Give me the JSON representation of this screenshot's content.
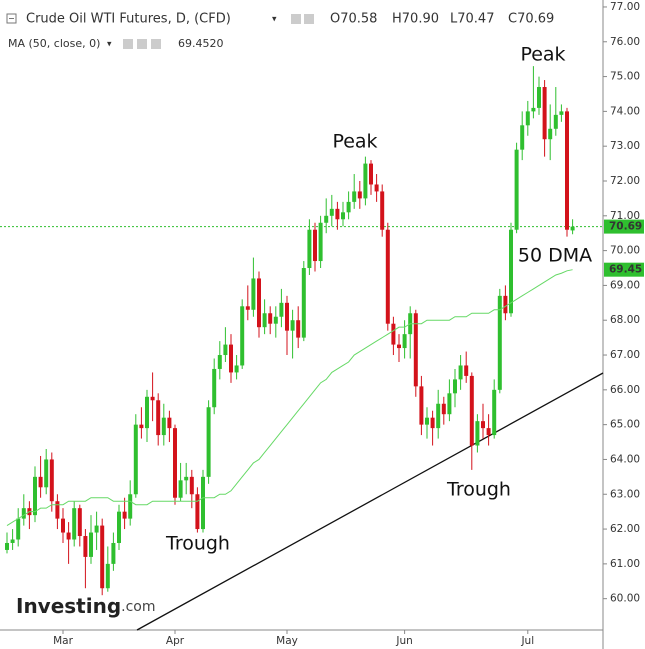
{
  "chart_data": {
    "type": "candlestick",
    "title": "Crude Oil WTI Futures, D, (CFD)",
    "ohlc_labels": [
      "O70.58",
      "H70.90",
      "L70.47",
      "C70.69"
    ],
    "ma": {
      "name": "MA (50, close, 0)",
      "legend_value": "69.4520",
      "price_label": "69.45",
      "color": "#66d966",
      "values": [
        62.1,
        62.2,
        62.3,
        62.4,
        62.5,
        62.5,
        62.6,
        62.6,
        62.7,
        62.7,
        62.7,
        62.8,
        62.8,
        62.8,
        62.8,
        62.9,
        62.9,
        62.9,
        62.9,
        62.8,
        62.8,
        62.8,
        62.8,
        62.7,
        62.7,
        62.7,
        62.8,
        62.8,
        62.8,
        62.8,
        62.8,
        62.8,
        62.8,
        62.8,
        62.8,
        62.9,
        62.9,
        62.9,
        63.0,
        63.0,
        63.1,
        63.3,
        63.5,
        63.7,
        63.9,
        64.0,
        64.2,
        64.4,
        64.6,
        64.8,
        65.0,
        65.2,
        65.4,
        65.6,
        65.8,
        66.0,
        66.2,
        66.3,
        66.5,
        66.6,
        66.7,
        66.8,
        67.0,
        67.1,
        67.2,
        67.3,
        67.4,
        67.5,
        67.6,
        67.7,
        67.8,
        67.8,
        67.9,
        67.9,
        67.9,
        68.0,
        68.0,
        68.0,
        68.0,
        68.0,
        68.1,
        68.1,
        68.1,
        68.2,
        68.2,
        68.2,
        68.2,
        68.3,
        68.3,
        68.4,
        68.5,
        68.6,
        68.7,
        68.8,
        68.9,
        69.0,
        69.1,
        69.2,
        69.3,
        69.35,
        69.42,
        69.452
      ]
    },
    "annotations": [
      "Peak",
      "Peak",
      "Trough",
      "Trough",
      "50 DMA"
    ],
    "logo": [
      "Investing",
      ".com"
    ],
    "up_color": "#2fbf2f",
    "down_color": "#d3121b",
    "last_line_color": "#2fbf2f",
    "categories": [
      null,
      null,
      null,
      null,
      null,
      null,
      null,
      null,
      null,
      null,
      "Mar",
      null,
      null,
      null,
      null,
      null,
      null,
      null,
      null,
      null,
      null,
      null,
      null,
      null,
      null,
      null,
      null,
      null,
      null,
      null,
      "Apr",
      null,
      null,
      null,
      null,
      null,
      null,
      null,
      null,
      null,
      null,
      null,
      null,
      null,
      null,
      null,
      null,
      null,
      null,
      null,
      "May",
      null,
      null,
      null,
      null,
      null,
      null,
      null,
      null,
      null,
      null,
      null,
      null,
      null,
      null,
      null,
      null,
      null,
      null,
      null,
      null,
      "Jun",
      null,
      null,
      null,
      null,
      null,
      null,
      null,
      null,
      null,
      null,
      null,
      null,
      null,
      null,
      null,
      null,
      null,
      null,
      null,
      null,
      null,
      "Jul",
      null,
      null,
      null,
      null,
      null,
      null,
      null,
      null
    ],
    "open": [
      61.4,
      61.6,
      61.7,
      62.3,
      62.6,
      62.4,
      63.5,
      63.2,
      64.0,
      62.8,
      62.3,
      61.9,
      61.7,
      62.6,
      61.8,
      61.2,
      61.9,
      62.1,
      60.3,
      61.0,
      61.6,
      62.5,
      62.3,
      63.0,
      65.0,
      64.9,
      65.8,
      65.7,
      64.7,
      65.2,
      64.9,
      62.9,
      63.4,
      63.5,
      63.0,
      62.0,
      63.5,
      65.5,
      66.6,
      67.0,
      67.3,
      66.5,
      66.7,
      68.4,
      68.3,
      69.2,
      67.8,
      68.2,
      67.9,
      68.1,
      68.5,
      67.7,
      68.0,
      67.5,
      69.5,
      70.6,
      69.7,
      70.8,
      71.0,
      71.2,
      70.9,
      71.1,
      71.4,
      71.7,
      71.5,
      72.5,
      71.9,
      71.7,
      70.6,
      67.9,
      67.3,
      67.2,
      67.6,
      68.2,
      66.1,
      65.0,
      65.2,
      64.9,
      65.6,
      65.3,
      65.9,
      66.3,
      66.7,
      66.4,
      64.4,
      65.1,
      64.9,
      64.7,
      66.0,
      68.7,
      68.2,
      70.6,
      72.9,
      73.6,
      74.0,
      74.1,
      74.7,
      73.2,
      73.5,
      73.9,
      74.0,
      70.58
    ],
    "high": [
      61.9,
      62.0,
      62.6,
      63.0,
      62.8,
      63.8,
      64.1,
      64.3,
      64.2,
      63.0,
      62.6,
      62.2,
      62.8,
      62.7,
      62.0,
      62.4,
      62.5,
      62.3,
      61.5,
      61.9,
      62.7,
      62.9,
      63.4,
      65.3,
      65.5,
      66.0,
      66.5,
      65.9,
      65.6,
      65.4,
      65.0,
      63.9,
      63.9,
      63.7,
      63.2,
      63.7,
      65.7,
      66.9,
      67.4,
      67.8,
      67.6,
      67.0,
      68.6,
      69.0,
      69.8,
      69.4,
      68.6,
      68.4,
      68.4,
      68.9,
      68.7,
      68.3,
      68.4,
      69.7,
      70.9,
      70.8,
      71.0,
      71.5,
      71.6,
      71.4,
      71.4,
      71.7,
      72.2,
      72.0,
      72.7,
      72.6,
      72.2,
      71.9,
      70.8,
      68.1,
      67.6,
      68.0,
      68.4,
      68.3,
      66.4,
      65.5,
      65.4,
      66.0,
      65.8,
      66.3,
      66.6,
      67.0,
      67.1,
      66.5,
      65.3,
      65.6,
      65.3,
      66.3,
      68.9,
      69.0,
      70.8,
      73.1,
      74.0,
      74.3,
      75.3,
      75.0,
      74.9,
      74.2,
      74.7,
      74.2,
      74.1,
      70.9
    ],
    "low": [
      61.3,
      61.4,
      61.5,
      62.1,
      62.0,
      62.2,
      62.9,
      63.0,
      62.5,
      62.0,
      61.6,
      61.0,
      61.5,
      61.5,
      60.3,
      61.0,
      61.4,
      60.1,
      60.2,
      60.8,
      61.4,
      62.0,
      62.1,
      62.9,
      64.6,
      64.5,
      65.1,
      64.4,
      64.4,
      64.5,
      62.7,
      62.8,
      63.0,
      62.6,
      61.9,
      61.9,
      63.3,
      65.3,
      66.3,
      66.8,
      66.2,
      66.3,
      66.6,
      68.0,
      68.1,
      67.5,
      67.6,
      67.6,
      67.5,
      67.8,
      67.0,
      66.9,
      67.2,
      67.4,
      69.3,
      69.4,
      69.5,
      70.5,
      70.7,
      70.6,
      70.7,
      70.9,
      71.2,
      71.2,
      71.3,
      71.6,
      71.4,
      70.4,
      67.7,
      67.0,
      66.8,
      66.9,
      66.9,
      65.8,
      64.7,
      64.6,
      64.4,
      64.6,
      65.0,
      65.1,
      65.5,
      66.0,
      66.2,
      63.7,
      64.2,
      64.6,
      64.4,
      64.6,
      65.9,
      68.0,
      68.1,
      70.5,
      72.6,
      73.3,
      73.8,
      73.9,
      72.7,
      72.6,
      73.3,
      73.7,
      70.4,
      70.47
    ],
    "close": [
      61.6,
      61.7,
      62.3,
      62.6,
      62.4,
      63.5,
      63.2,
      64.0,
      62.8,
      62.3,
      61.9,
      61.7,
      62.6,
      61.8,
      61.2,
      61.9,
      62.1,
      60.3,
      61.0,
      61.6,
      62.5,
      62.3,
      63.0,
      65.0,
      64.9,
      65.8,
      65.7,
      64.7,
      65.2,
      64.9,
      62.9,
      63.4,
      63.5,
      63.0,
      62.0,
      63.5,
      65.5,
      66.6,
      67.0,
      67.3,
      66.5,
      66.7,
      68.4,
      68.3,
      69.2,
      67.8,
      68.2,
      67.9,
      68.1,
      68.5,
      67.7,
      68.0,
      67.5,
      69.5,
      70.6,
      69.7,
      70.8,
      71.0,
      71.2,
      70.9,
      71.1,
      71.4,
      71.7,
      71.5,
      72.5,
      71.9,
      71.7,
      70.6,
      67.9,
      67.3,
      67.2,
      67.6,
      68.2,
      66.1,
      65.0,
      65.2,
      64.9,
      65.6,
      65.3,
      65.9,
      66.3,
      66.7,
      66.4,
      64.4,
      65.1,
      64.9,
      64.7,
      66.0,
      68.7,
      68.2,
      70.6,
      72.9,
      73.6,
      74.0,
      74.1,
      74.7,
      73.2,
      73.5,
      73.9,
      74.0,
      70.6,
      70.69
    ],
    "ylim": [
      59.1,
      77.2
    ],
    "yticks": [
      {
        "value": 60,
        "label": "60.00"
      },
      {
        "value": 61,
        "label": "61.00"
      },
      {
        "value": 62,
        "label": "62.00"
      },
      {
        "value": 63,
        "label": "63.00"
      },
      {
        "value": 64,
        "label": "64.00"
      },
      {
        "value": 65,
        "label": "65.00"
      },
      {
        "value": 66,
        "label": "66.00"
      },
      {
        "value": 67,
        "label": "67.00"
      },
      {
        "value": 68,
        "label": "68.00"
      },
      {
        "value": 69,
        "label": "69.00"
      },
      {
        "value": 70,
        "label": "70.00"
      },
      {
        "value": 71,
        "label": "71.00"
      },
      {
        "value": 72,
        "label": "72.00"
      },
      {
        "value": 73,
        "label": "73.00"
      },
      {
        "value": 74,
        "label": "74.00"
      },
      {
        "value": 75,
        "label": "75.00"
      },
      {
        "value": 76,
        "label": "76.00"
      },
      {
        "value": 77,
        "label": "77.00"
      }
    ],
    "grid": false
  }
}
